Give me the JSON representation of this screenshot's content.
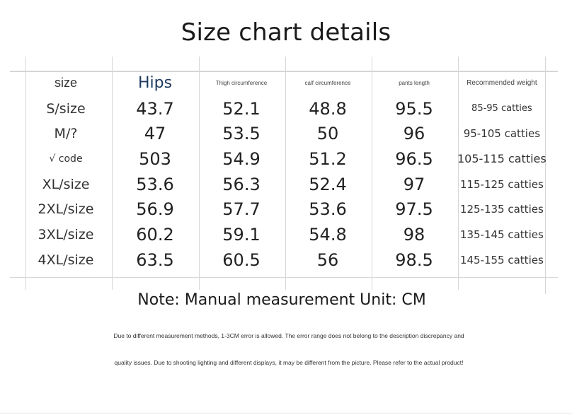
{
  "title": "Size chart details",
  "table": {
    "headers": [
      "size",
      "Hips",
      "Thigh circumference",
      "calf circumference",
      "pants length",
      "Recommended weight"
    ],
    "rows": [
      [
        "S/size",
        "43.7",
        "52.1",
        "48.8",
        "95.5",
        "85-95 catties"
      ],
      [
        "M/?",
        "47",
        "53.5",
        "50",
        "96",
        "95-105 catties"
      ],
      [
        "√ code",
        "503",
        "54.9",
        "51.2",
        "96.5",
        "105-115 catties"
      ],
      [
        "XL/size",
        "53.6",
        "56.3",
        "52.4",
        "97",
        "115-125 catties"
      ],
      [
        "2XL/size",
        "56.9",
        "57.7",
        "53.6",
        "97.5",
        "125-135 catties"
      ],
      [
        "3XL/size",
        "60.2",
        "59.1",
        "54.8",
        "98",
        "135-145 catties"
      ],
      [
        "4XL/size",
        "63.5",
        "60.5",
        "56",
        "98.5",
        "145-155 catties"
      ]
    ]
  },
  "note": "Note: Manual measurement Unit: CM",
  "disclaimer": {
    "line1": "Due to different measurement methods, 1-3CM error is allowed. The error range does not belong to the description discrepancy and",
    "line2": "quality issues. Due to shooting lighting and different displays, it may be different from the picture. Please refer to the actual product!"
  }
}
